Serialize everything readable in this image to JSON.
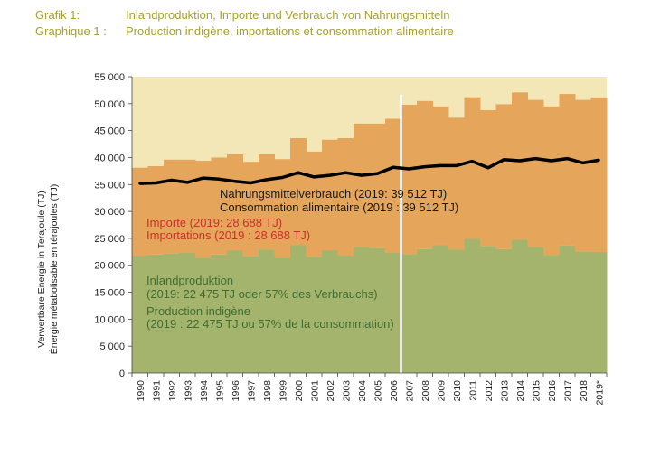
{
  "figure": {
    "caption_de_label": "Grafik 1:",
    "caption_de_text": "Inlandproduktion, Importe und Verbrauch von Nahrungsmitteln",
    "caption_fr_label": "Graphique 1 :",
    "caption_fr_text": "Production indigène, importations et consommation alimentaire"
  },
  "chart_data": {
    "type": "area",
    "title": "",
    "ylabel_de": "Verwertbare Energie in Terajoule (TJ)",
    "ylabel_fr": "Énergie métabolisable en térajoules (TJ)",
    "ylim": [
      0,
      55000
    ],
    "yticks": [
      0,
      5000,
      10000,
      15000,
      20000,
      25000,
      30000,
      35000,
      40000,
      45000,
      50000,
      55000
    ],
    "ytick_labels": [
      "0",
      "5 000",
      "10 000",
      "15 000",
      "20 000",
      "25 000",
      "30 000",
      "35 000",
      "40 000",
      "45 000",
      "50 000",
      "55 000"
    ],
    "categories": [
      "1990",
      "1991",
      "1992",
      "1993",
      "1994",
      "1995",
      "1996",
      "1997",
      "1998",
      "1999",
      "2000",
      "2001",
      "2002",
      "2003",
      "2004",
      "2005",
      "2006",
      "2007",
      "2008",
      "2009",
      "2010",
      "2011",
      "2012",
      "2013",
      "2014",
      "2015",
      "2016",
      "2017",
      "2018",
      "2019*"
    ],
    "break_after": "2006",
    "series": [
      {
        "name_de": "Inlandproduktion",
        "name_fr": "Production indigène",
        "kind": "stacked-area",
        "color": "#a5b46c",
        "values": [
          21800,
          22000,
          22200,
          22300,
          21400,
          22000,
          22800,
          21700,
          22900,
          21400,
          23800,
          21600,
          22800,
          21800,
          23400,
          23200,
          22300,
          22100,
          23000,
          23800,
          22900,
          24900,
          23600,
          23000,
          24800,
          23400,
          21900,
          23700,
          22600,
          22475
        ]
      },
      {
        "name_de": "Importe",
        "name_fr": "Importations",
        "kind": "stacked-area",
        "color": "#e5a65c",
        "values": [
          16300,
          16400,
          17400,
          17300,
          18000,
          18000,
          17800,
          17500,
          17700,
          18300,
          19800,
          19500,
          20500,
          21800,
          22900,
          23100,
          24900,
          27700,
          27500,
          25700,
          24500,
          26300,
          25200,
          26900,
          27300,
          27300,
          27600,
          28100,
          28100,
          28688
        ]
      },
      {
        "name_de": "Nahrungsmittelverbrauch",
        "name_fr": "Consommation alimentaire",
        "kind": "line",
        "color": "#000000",
        "values": [
          35200,
          35300,
          35800,
          35400,
          36200,
          36000,
          35600,
          35300,
          35900,
          36300,
          37200,
          36400,
          36700,
          37200,
          36700,
          37000,
          38200,
          37900,
          38300,
          38500,
          38500,
          39300,
          38100,
          39600,
          39400,
          39800,
          39400,
          39800,
          39000,
          39512
        ]
      }
    ],
    "annotations": {
      "consumption_de": "Nahrungsmittelverbrauch (2019: 39 512 TJ)",
      "consumption_fr": "Consommation alimentaire (2019 : 39 512 TJ)",
      "imports_de": "Importe (2019: 28 688 TJ)",
      "imports_fr": "Importations (2019 : 28 688 TJ)",
      "production_de_1": "Inlandproduktion",
      "production_de_2": "(2019: 22 475 TJ oder 57% des Verbrauchs)",
      "production_fr_1": "Production indigène",
      "production_fr_2": "(2019 : 22 475 TJ ou 57% de la consommation)"
    },
    "colors": {
      "plot_background": "#f3e7b7",
      "production": "#a5b46c",
      "imports": "#e5a65c",
      "consumption_line": "#000000",
      "consumption_text": "#1a1a1a",
      "imports_text": "#c8312a",
      "production_text": "#3f6e32",
      "caption": "#a8a030"
    }
  }
}
